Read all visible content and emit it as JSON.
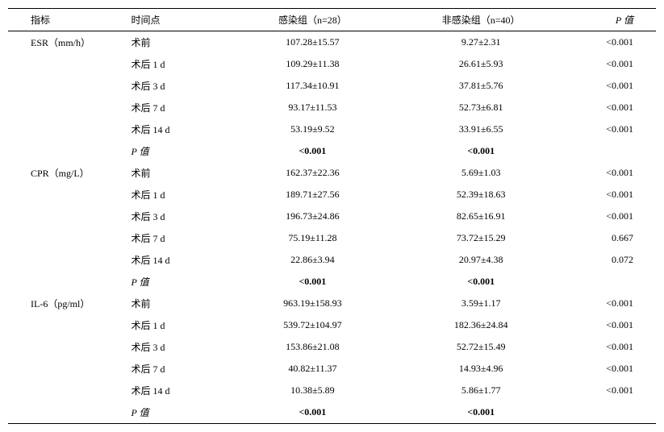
{
  "header": {
    "indicator": "指标",
    "timepoint": "时间点",
    "group1": "感染组（n=28）",
    "group2": "非感染组（n=40）",
    "pvalue": "P 值"
  },
  "sections": [
    {
      "indicator": "ESR（mm/h）",
      "rows": [
        {
          "time": "术前",
          "g1": "107.28±15.57",
          "g2": "9.27±2.31",
          "p": "<0.001"
        },
        {
          "time": "术后 1 d",
          "g1": "109.29±11.38",
          "g2": "26.61±5.93",
          "p": "<0.001"
        },
        {
          "time": "术后 3 d",
          "g1": "117.34±10.91",
          "g2": "37.81±5.76",
          "p": "<0.001"
        },
        {
          "time": "术后 7 d",
          "g1": "93.17±11.53",
          "g2": "52.73±6.81",
          "p": "<0.001"
        },
        {
          "time": "术后 14 d",
          "g1": "53.19±9.52",
          "g2": "33.91±6.55",
          "p": "<0.001"
        }
      ],
      "prow": {
        "label": "P 值",
        "g1": "<0.001",
        "g2": "<0.001"
      }
    },
    {
      "indicator": "CPR（mg/L）",
      "rows": [
        {
          "time": "术前",
          "g1": "162.37±22.36",
          "g2": "5.69±1.03",
          "p": "<0.001"
        },
        {
          "time": "术后 1 d",
          "g1": "189.71±27.56",
          "g2": "52.39±18.63",
          "p": "<0.001"
        },
        {
          "time": "术后 3 d",
          "g1": "196.73±24.86",
          "g2": "82.65±16.91",
          "p": "<0.001"
        },
        {
          "time": "术后 7 d",
          "g1": "75.19±11.28",
          "g2": "73.72±15.29",
          "p": "0.667"
        },
        {
          "time": "术后 14 d",
          "g1": "22.86±3.94",
          "g2": "20.97±4.38",
          "p": "0.072"
        }
      ],
      "prow": {
        "label": "P 值",
        "g1": "<0.001",
        "g2": "<0.001"
      }
    },
    {
      "indicator": "IL-6（pg/ml）",
      "rows": [
        {
          "time": "术前",
          "g1": "963.19±158.93",
          "g2": "3.59±1.17",
          "p": "<0.001"
        },
        {
          "time": "术后 1 d",
          "g1": "539.72±104.97",
          "g2": "182.36±24.84",
          "p": "<0.001"
        },
        {
          "time": "术后 3 d",
          "g1": "153.86±21.08",
          "g2": "52.72±15.49",
          "p": "<0.001"
        },
        {
          "time": "术后 7 d",
          "g1": "40.82±11.37",
          "g2": "14.93±4.96",
          "p": "<0.001"
        },
        {
          "time": "术后 14 d",
          "g1": "10.38±5.89",
          "g2": "5.86±1.77",
          "p": "<0.001"
        }
      ],
      "prow": {
        "label": "P 值",
        "g1": "<0.001",
        "g2": "<0.001"
      }
    }
  ]
}
